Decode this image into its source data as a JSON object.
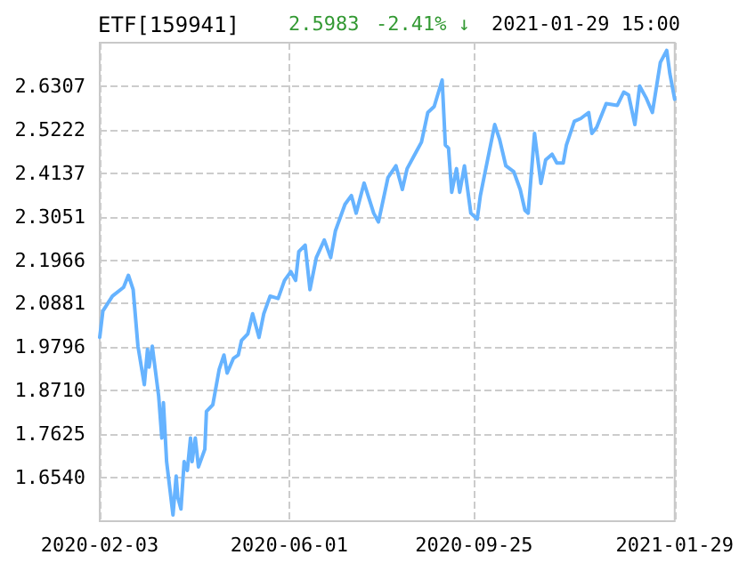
{
  "chart_data": {
    "type": "line",
    "title": "ETF[159941]",
    "annotations": [
      "2.5983",
      "-2.41% ↓",
      "2021-01-29 15:00"
    ],
    "x": [
      "2020-02-03",
      "2020-02-05",
      "2020-02-11",
      "2020-02-18",
      "2020-02-21",
      "2020-02-24",
      "2020-02-27",
      "2020-03-02",
      "2020-03-04",
      "2020-03-05",
      "2020-03-07",
      "2020-03-11",
      "2020-03-13",
      "2020-03-14",
      "2020-03-16",
      "2020-03-20",
      "2020-03-22",
      "2020-03-23",
      "2020-03-25",
      "2020-03-27",
      "2020-03-29",
      "2020-03-31",
      "2020-04-01",
      "2020-04-03",
      "2020-04-05",
      "2020-04-09",
      "2020-04-10",
      "2020-04-14",
      "2020-04-18",
      "2020-04-21",
      "2020-04-23",
      "2020-04-27",
      "2020-04-30",
      "2020-05-02",
      "2020-05-06",
      "2020-05-09",
      "2020-05-13",
      "2020-05-16",
      "2020-05-20",
      "2020-05-25",
      "2020-05-29",
      "2020-06-02",
      "2020-06-05",
      "2020-06-07",
      "2020-06-11",
      "2020-06-14",
      "2020-06-18",
      "2020-06-23",
      "2020-06-27",
      "2020-06-30",
      "2020-07-06",
      "2020-07-10",
      "2020-07-13",
      "2020-07-18",
      "2020-07-24",
      "2020-07-27",
      "2020-08-02",
      "2020-08-07",
      "2020-08-11",
      "2020-08-14",
      "2020-08-20",
      "2020-08-23",
      "2020-08-27",
      "2020-08-31",
      "2020-09-05",
      "2020-09-07",
      "2020-09-09",
      "2020-09-11",
      "2020-09-14",
      "2020-09-16",
      "2020-09-19",
      "2020-09-23",
      "2020-09-27",
      "2020-09-29",
      "2020-10-02",
      "2020-10-08",
      "2020-10-11",
      "2020-10-15",
      "2020-10-20",
      "2020-10-24",
      "2020-10-27",
      "2020-10-29",
      "2020-11-02",
      "2020-11-06",
      "2020-11-09",
      "2020-11-13",
      "2020-11-16",
      "2020-11-20",
      "2020-11-22",
      "2020-11-27",
      "2020-12-01",
      "2020-12-06",
      "2020-12-08",
      "2020-12-11",
      "2020-12-17",
      "2020-12-24",
      "2020-12-28",
      "2020-12-31",
      "2021-01-04",
      "2021-01-07",
      "2021-01-11",
      "2021-01-15",
      "2021-01-20",
      "2021-01-24",
      "2021-01-26",
      "2021-01-29"
    ],
    "series": [
      {
        "color": "#66b3ff",
        "values": [
          2.004,
          2.07,
          2.107,
          2.129,
          2.159,
          2.123,
          1.982,
          1.886,
          1.974,
          1.93,
          1.982,
          1.858,
          1.753,
          1.841,
          1.694,
          1.561,
          1.658,
          1.605,
          1.576,
          1.694,
          1.672,
          1.753,
          1.694,
          1.753,
          1.681,
          1.725,
          1.819,
          1.836,
          1.924,
          1.96,
          1.915,
          1.952,
          1.96,
          1.996,
          2.013,
          2.063,
          2.004,
          2.063,
          2.107,
          2.101,
          2.146,
          2.168,
          2.146,
          2.218,
          2.234,
          2.123,
          2.203,
          2.247,
          2.203,
          2.27,
          2.336,
          2.358,
          2.314,
          2.389,
          2.314,
          2.292,
          2.403,
          2.432,
          2.373,
          2.425,
          2.469,
          2.491,
          2.565,
          2.58,
          2.646,
          2.484,
          2.476,
          2.366,
          2.425,
          2.366,
          2.432,
          2.314,
          2.299,
          2.358,
          2.417,
          2.535,
          2.499,
          2.432,
          2.417,
          2.373,
          2.321,
          2.314,
          2.513,
          2.388,
          2.447,
          2.461,
          2.439,
          2.439,
          2.484,
          2.543,
          2.55,
          2.565,
          2.513,
          2.528,
          2.587,
          2.583,
          2.616,
          2.609,
          2.535,
          2.631,
          2.602,
          2.565,
          2.69,
          2.72,
          2.661,
          2.598
        ]
      }
    ],
    "xlim": [
      "2020-02-03",
      "2021-01-29"
    ],
    "xticks": [
      "2020-02-03",
      "2020-06-01",
      "2020-09-25",
      "2021-01-29"
    ],
    "ylim": [
      1.5455,
      2.7392
    ],
    "yticks": [
      {
        "value": 1.654,
        "label": "1.6540"
      },
      1.7625,
      {
        "value": 1.871,
        "label": "1.8710"
      },
      1.9796,
      2.0881,
      2.1966,
      2.3051,
      2.4137,
      2.5222,
      2.6307
    ],
    "grid": true,
    "marker": "none",
    "line_style": "solid"
  }
}
